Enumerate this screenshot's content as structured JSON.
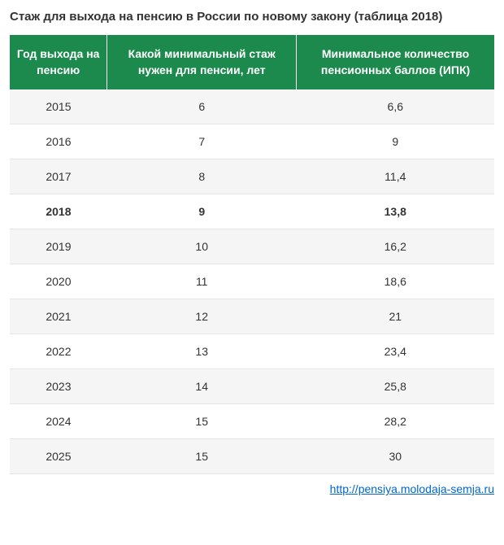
{
  "title": "Стаж для выхода на пенсию в России по новому закону (таблица 2018)",
  "table": {
    "type": "table",
    "header_bg_color": "#1b8a4c",
    "header_text_color": "#ffffff",
    "alt_row_bg_color": "#f5f5f5",
    "border_color": "#e5e5e5",
    "text_color": "#333333",
    "columns": [
      "Год выхода на пенсию",
      "Какой минимальный стаж нужен для пенсии, лет",
      "Минимальное количество пенсионных баллов (ИПК)"
    ],
    "rows": [
      {
        "cells": [
          "2015",
          "6",
          "6,6"
        ],
        "alt": true,
        "bold": false
      },
      {
        "cells": [
          "2016",
          "7",
          "9"
        ],
        "alt": false,
        "bold": false
      },
      {
        "cells": [
          "2017",
          "8",
          "11,4"
        ],
        "alt": true,
        "bold": false
      },
      {
        "cells": [
          "2018",
          "9",
          "13,8"
        ],
        "alt": false,
        "bold": true
      },
      {
        "cells": [
          "2019",
          "10",
          "16,2"
        ],
        "alt": true,
        "bold": false
      },
      {
        "cells": [
          "2020",
          "11",
          "18,6"
        ],
        "alt": false,
        "bold": false
      },
      {
        "cells": [
          "2021",
          "12",
          "21"
        ],
        "alt": true,
        "bold": false
      },
      {
        "cells": [
          "2022",
          "13",
          "23,4"
        ],
        "alt": false,
        "bold": false
      },
      {
        "cells": [
          "2023",
          "14",
          "25,8"
        ],
        "alt": true,
        "bold": false
      },
      {
        "cells": [
          "2024",
          "15",
          "28,2"
        ],
        "alt": false,
        "bold": false
      },
      {
        "cells": [
          "2025",
          "15",
          "30"
        ],
        "alt": true,
        "bold": false
      }
    ]
  },
  "source": {
    "url_text": "http://pensiya.molodaja-semja.ru",
    "link_color": "#0066cc"
  }
}
